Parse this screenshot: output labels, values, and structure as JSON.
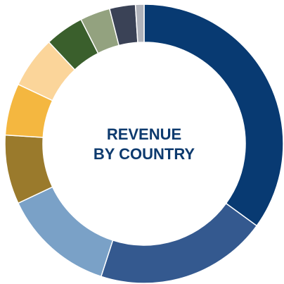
{
  "chart_data": {
    "type": "donut",
    "title_lines": [
      "REVENUE",
      "BY COUNTRY"
    ],
    "categories": [
      null,
      null,
      null,
      null,
      null,
      null,
      null,
      null,
      null,
      null
    ],
    "values": [
      35,
      20,
      13,
      8,
      6,
      6,
      4.5,
      3.5,
      3,
      1
    ],
    "colors": [
      "#083a72",
      "#34598f",
      "#7aa1c7",
      "#9a7a2c",
      "#f4b740",
      "#fbd59a",
      "#3a5f2c",
      "#93a27f",
      "#3a4256",
      "#b0b3bb"
    ],
    "title_color": "#0d3a6e"
  }
}
